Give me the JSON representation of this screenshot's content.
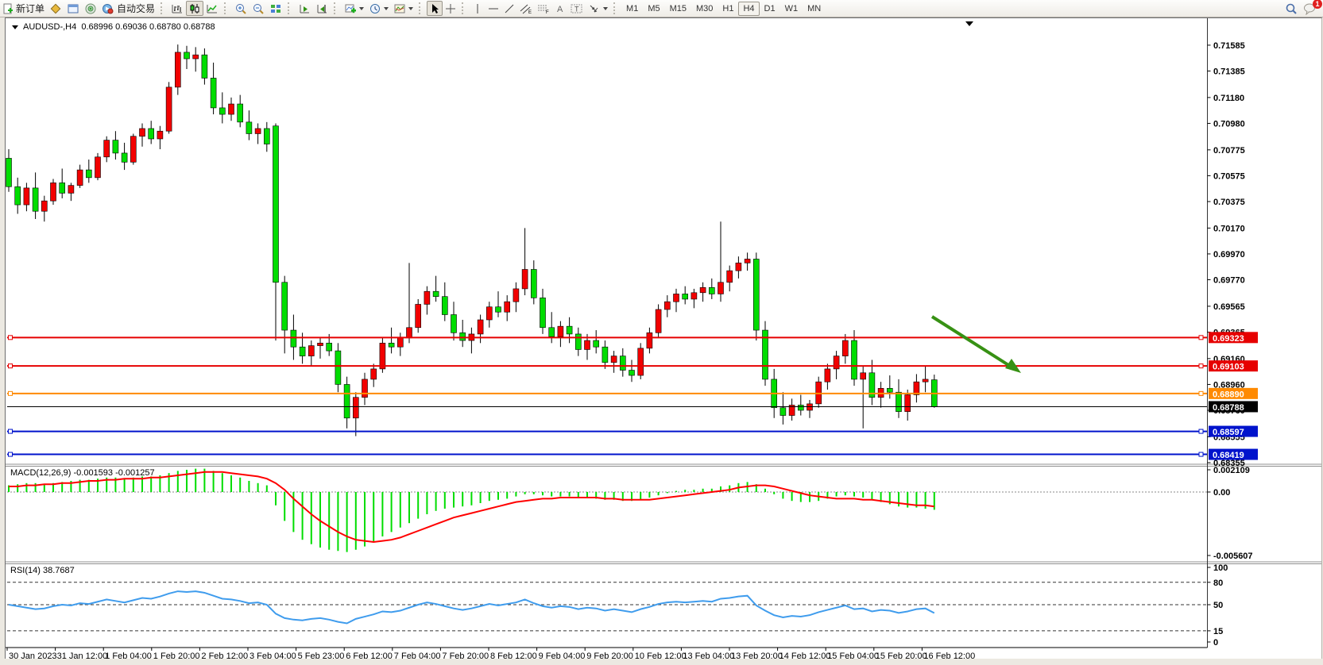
{
  "toolbar": {
    "new_order_label": "新订单",
    "autotrade_label": "自动交易",
    "timeframes": [
      "M1",
      "M5",
      "M15",
      "M30",
      "H1",
      "H4",
      "D1",
      "W1",
      "MN"
    ],
    "active_timeframe": "H4",
    "notification_badge": "1"
  },
  "chart": {
    "symbol_title": "AUDUSD-,H4",
    "ohlc_text": "0.68996 0.69036 0.68780 0.68788"
  },
  "price_axis_ticks": [
    "0.71585",
    "0.71385",
    "0.71180",
    "0.70980",
    "0.70775",
    "0.70575",
    "0.70375",
    "0.70170",
    "0.69970",
    "0.69770",
    "0.69565",
    "0.69365",
    "0.69160",
    "0.68960",
    "0.68760",
    "0.68555",
    "0.68355"
  ],
  "time_axis_labels": [
    "30 Jan 2023",
    "31 Jan 12:00",
    "1 Feb 04:00",
    "1 Feb 20:00",
    "2 Feb 12:00",
    "3 Feb 04:00",
    "5 Feb 23:00",
    "6 Feb 12:00",
    "7 Feb 04:00",
    "7 Feb 20:00",
    "8 Feb 12:00",
    "9 Feb 04:00",
    "9 Feb 20:00",
    "10 Feb 12:00",
    "13 Feb 04:00",
    "13 Feb 20:00",
    "14 Feb 12:00",
    "15 Feb 04:00",
    "15 Feb 20:00",
    "16 Feb 12:00"
  ],
  "levels": [
    {
      "name": "resistance-line-1",
      "price": 0.69323,
      "label": "0.69323",
      "color": "#e60000",
      "handles": true
    },
    {
      "name": "resistance-line-2",
      "price": 0.69103,
      "label": "0.69103",
      "color": "#e60000",
      "handles": true
    },
    {
      "name": "support-line-orange",
      "price": 0.6889,
      "label": "0.68890",
      "color": "#ff8a00",
      "handles": true
    },
    {
      "name": "current-price-line",
      "price": 0.68788,
      "label": "0.68788",
      "color": "#000000",
      "handles": false
    },
    {
      "name": "support-line-blue-1",
      "price": 0.68597,
      "label": "0.68597",
      "color": "#0013cc",
      "handles": true
    },
    {
      "name": "support-line-blue-2",
      "price": 0.68419,
      "label": "0.68419",
      "color": "#0013cc",
      "handles": true
    }
  ],
  "macd_panel": {
    "label": "MACD(12,26,9)",
    "values_text": "-0.001593 -0.001257",
    "axis_max": "0.002109",
    "axis_zero": "0.00",
    "axis_min": "-0.005607"
  },
  "rsi_panel": {
    "label": "RSI(14)",
    "value_text": "38.7687",
    "axis_ticks": [
      "100",
      "80",
      "50",
      "15",
      "0"
    ]
  },
  "annotation": {
    "type": "down-arrow",
    "color": "#379114"
  },
  "chart_data": [
    {
      "type": "candlestick",
      "title": "AUDUSD-,H4",
      "bull_color": "#f20000",
      "bear_color": "#00dd00",
      "ylim": [
        0.68343,
        0.71781
      ],
      "candles": [
        [
          0.7071,
          0.7078,
          0.7045,
          0.7049
        ],
        [
          0.7049,
          0.7056,
          0.7028,
          0.7035
        ],
        [
          0.7035,
          0.7052,
          0.703,
          0.7048
        ],
        [
          0.7048,
          0.706,
          0.7024,
          0.703
        ],
        [
          0.703,
          0.7042,
          0.7022,
          0.7038
        ],
        [
          0.7038,
          0.7055,
          0.7035,
          0.7052
        ],
        [
          0.7052,
          0.7063,
          0.704,
          0.7044
        ],
        [
          0.7044,
          0.7052,
          0.7038,
          0.705
        ],
        [
          0.705,
          0.7066,
          0.7048,
          0.7062
        ],
        [
          0.7062,
          0.707,
          0.7052,
          0.7056
        ],
        [
          0.7056,
          0.7075,
          0.7054,
          0.7072
        ],
        [
          0.7072,
          0.7088,
          0.7068,
          0.7085
        ],
        [
          0.7085,
          0.7092,
          0.707,
          0.7075
        ],
        [
          0.7075,
          0.7083,
          0.7062,
          0.7068
        ],
        [
          0.7068,
          0.709,
          0.7066,
          0.7088
        ],
        [
          0.7088,
          0.7098,
          0.708,
          0.7094
        ],
        [
          0.7094,
          0.71,
          0.7082,
          0.7086
        ],
        [
          0.7086,
          0.7096,
          0.7078,
          0.7092
        ],
        [
          0.7092,
          0.713,
          0.709,
          0.7126
        ],
        [
          0.7126,
          0.7159,
          0.712,
          0.7153
        ],
        [
          0.7153,
          0.7158,
          0.714,
          0.7148
        ],
        [
          0.7148,
          0.7157,
          0.7138,
          0.7151
        ],
        [
          0.7151,
          0.7156,
          0.7128,
          0.7133
        ],
        [
          0.7133,
          0.7145,
          0.7105,
          0.711
        ],
        [
          0.711,
          0.7122,
          0.7098,
          0.7105
        ],
        [
          0.7105,
          0.7118,
          0.71,
          0.7113
        ],
        [
          0.7113,
          0.712,
          0.7095,
          0.7099
        ],
        [
          0.7099,
          0.7108,
          0.7085,
          0.709
        ],
        [
          0.709,
          0.7098,
          0.7082,
          0.7094
        ],
        [
          0.7094,
          0.7099,
          0.7076,
          0.7082
        ],
        [
          0.7096,
          0.7098,
          0.693,
          0.6975
        ],
        [
          0.6975,
          0.698,
          0.692,
          0.6938
        ],
        [
          0.6938,
          0.695,
          0.6915,
          0.6925
        ],
        [
          0.6925,
          0.6936,
          0.6912,
          0.6918
        ],
        [
          0.6918,
          0.693,
          0.691,
          0.6926
        ],
        [
          0.6926,
          0.6932,
          0.6916,
          0.6928
        ],
        [
          0.6928,
          0.6935,
          0.6918,
          0.6922
        ],
        [
          0.6922,
          0.6928,
          0.689,
          0.6896
        ],
        [
          0.6896,
          0.6902,
          0.6862,
          0.687
        ],
        [
          0.687,
          0.689,
          0.6856,
          0.6886
        ],
        [
          0.6886,
          0.6905,
          0.688,
          0.69
        ],
        [
          0.69,
          0.6912,
          0.6894,
          0.6908
        ],
        [
          0.6908,
          0.6932,
          0.6905,
          0.6928
        ],
        [
          0.6928,
          0.694,
          0.692,
          0.6925
        ],
        [
          0.6925,
          0.6936,
          0.6918,
          0.6932
        ],
        [
          0.6932,
          0.699,
          0.6928,
          0.694
        ],
        [
          0.694,
          0.6962,
          0.6936,
          0.6958
        ],
        [
          0.6958,
          0.6972,
          0.695,
          0.6968
        ],
        [
          0.6968,
          0.698,
          0.696,
          0.6964
        ],
        [
          0.6964,
          0.6975,
          0.6945,
          0.695
        ],
        [
          0.695,
          0.696,
          0.693,
          0.6936
        ],
        [
          0.6936,
          0.6946,
          0.6925,
          0.693
        ],
        [
          0.693,
          0.694,
          0.692,
          0.6935
        ],
        [
          0.6935,
          0.695,
          0.6928,
          0.6946
        ],
        [
          0.6946,
          0.696,
          0.694,
          0.6956
        ],
        [
          0.6956,
          0.6968,
          0.6948,
          0.6952
        ],
        [
          0.6952,
          0.6965,
          0.6945,
          0.696
        ],
        [
          0.696,
          0.6975,
          0.6952,
          0.697
        ],
        [
          0.697,
          0.7017,
          0.6965,
          0.6985
        ],
        [
          0.6985,
          0.6992,
          0.6958,
          0.6963
        ],
        [
          0.6963,
          0.697,
          0.6935,
          0.694
        ],
        [
          0.694,
          0.6952,
          0.6928,
          0.6933
        ],
        [
          0.6933,
          0.6945,
          0.6925,
          0.6941
        ],
        [
          0.6941,
          0.6948,
          0.6928,
          0.6935
        ],
        [
          0.6935,
          0.694,
          0.6918,
          0.6923
        ],
        [
          0.6923,
          0.6935,
          0.6915,
          0.693
        ],
        [
          0.693,
          0.6938,
          0.692,
          0.6925
        ],
        [
          0.6925,
          0.693,
          0.6908,
          0.6913
        ],
        [
          0.6913,
          0.6922,
          0.6905,
          0.6918
        ],
        [
          0.6918,
          0.6924,
          0.6902,
          0.6907
        ],
        [
          0.6907,
          0.6915,
          0.6898,
          0.6903
        ],
        [
          0.6903,
          0.6928,
          0.69,
          0.6924
        ],
        [
          0.6924,
          0.694,
          0.692,
          0.6936
        ],
        [
          0.6936,
          0.6958,
          0.6932,
          0.6954
        ],
        [
          0.6954,
          0.6965,
          0.6948,
          0.696
        ],
        [
          0.696,
          0.697,
          0.6952,
          0.6966
        ],
        [
          0.6966,
          0.6972,
          0.6958,
          0.6962
        ],
        [
          0.6962,
          0.697,
          0.6955,
          0.6967
        ],
        [
          0.6967,
          0.6975,
          0.696,
          0.6971
        ],
        [
          0.6971,
          0.6978,
          0.6962,
          0.6966
        ],
        [
          0.6966,
          0.7022,
          0.696,
          0.6975
        ],
        [
          0.6975,
          0.6988,
          0.6968,
          0.6984
        ],
        [
          0.6984,
          0.6995,
          0.6978,
          0.699
        ],
        [
          0.699,
          0.6998,
          0.6984,
          0.6993
        ],
        [
          0.6993,
          0.6998,
          0.693,
          0.6938
        ],
        [
          0.6938,
          0.6945,
          0.6895,
          0.69
        ],
        [
          0.69,
          0.6908,
          0.687,
          0.6878
        ],
        [
          0.6878,
          0.689,
          0.6865,
          0.6872
        ],
        [
          0.6872,
          0.6885,
          0.6868,
          0.688
        ],
        [
          0.688,
          0.6888,
          0.6872,
          0.6876
        ],
        [
          0.6876,
          0.6884,
          0.687,
          0.6881
        ],
        [
          0.6881,
          0.6902,
          0.6878,
          0.6898
        ],
        [
          0.6898,
          0.6912,
          0.6892,
          0.6908
        ],
        [
          0.6908,
          0.6922,
          0.69,
          0.6918
        ],
        [
          0.6918,
          0.6935,
          0.6912,
          0.693
        ],
        [
          0.693,
          0.6938,
          0.6895,
          0.69
        ],
        [
          0.69,
          0.691,
          0.6862,
          0.6905
        ],
        [
          0.6905,
          0.6915,
          0.688,
          0.6886
        ],
        [
          0.6886,
          0.6898,
          0.6878,
          0.6893
        ],
        [
          0.6893,
          0.6903,
          0.6885,
          0.689
        ],
        [
          0.689,
          0.69,
          0.687,
          0.6875
        ],
        [
          0.6875,
          0.6892,
          0.6868,
          0.6888
        ],
        [
          0.6888,
          0.6904,
          0.6882,
          0.6898
        ],
        [
          0.6898,
          0.691,
          0.689,
          0.69
        ],
        [
          0.68996,
          0.69036,
          0.6878,
          0.68788
        ]
      ]
    },
    {
      "type": "bar",
      "title": "MACD(12,26,9)",
      "ylim": [
        -0.005607,
        0.002109
      ],
      "histogram_color": "#00dd00",
      "signal_color": "#ff0000",
      "histogram": [
        0.0006,
        0.0007,
        0.0008,
        0.0008,
        0.0007,
        0.0008,
        0.0009,
        0.001,
        0.0011,
        0.0011,
        0.0012,
        0.0013,
        0.0013,
        0.0012,
        0.0013,
        0.0014,
        0.0014,
        0.0015,
        0.0017,
        0.0019,
        0.002,
        0.0021,
        0.0021,
        0.0019,
        0.0017,
        0.0015,
        0.0013,
        0.001,
        0.0008,
        0.0006,
        -0.0012,
        -0.0026,
        -0.0036,
        -0.0043,
        -0.0047,
        -0.005,
        -0.0052,
        -0.0053,
        -0.0054,
        -0.0052,
        -0.0049,
        -0.0045,
        -0.004,
        -0.0036,
        -0.0032,
        -0.0028,
        -0.0024,
        -0.002,
        -0.0017,
        -0.0015,
        -0.0014,
        -0.0013,
        -0.0012,
        -0.001,
        -0.0008,
        -0.0007,
        -0.0006,
        -0.0004,
        -0.0002,
        -0.0002,
        -0.0003,
        -0.0004,
        -0.0004,
        -0.0004,
        -0.0005,
        -0.0005,
        -0.0006,
        -0.0007,
        -0.0007,
        -0.0008,
        -0.0008,
        -0.0007,
        -0.0005,
        -0.0003,
        -0.0001,
        0.0001,
        0.0002,
        0.0002,
        0.0003,
        0.0003,
        0.0005,
        0.0006,
        0.0008,
        0.0009,
        0.0007,
        0.0003,
        -0.0002,
        -0.0006,
        -0.0008,
        -0.0009,
        -0.0009,
        -0.0008,
        -0.0006,
        -0.0004,
        -0.0003,
        -0.0004,
        -0.0005,
        -0.0007,
        -0.0009,
        -0.0011,
        -0.0013,
        -0.0014,
        -0.0014,
        -0.0015,
        -0.0016
      ],
      "signal": [
        0.0005,
        0.0005,
        0.0006,
        0.0006,
        0.0007,
        0.0007,
        0.0008,
        0.0008,
        0.0009,
        0.001,
        0.001,
        0.0011,
        0.0011,
        0.0012,
        0.0012,
        0.0012,
        0.0013,
        0.0013,
        0.0014,
        0.0015,
        0.0016,
        0.0017,
        0.0018,
        0.0018,
        0.0018,
        0.0017,
        0.0016,
        0.0015,
        0.0014,
        0.0012,
        0.0008,
        0.0002,
        -0.0006,
        -0.0013,
        -0.002,
        -0.0026,
        -0.0031,
        -0.0036,
        -0.004,
        -0.0043,
        -0.0044,
        -0.0045,
        -0.0044,
        -0.0043,
        -0.0041,
        -0.0038,
        -0.0035,
        -0.0032,
        -0.0029,
        -0.0026,
        -0.0023,
        -0.0021,
        -0.0019,
        -0.0017,
        -0.0015,
        -0.0013,
        -0.0011,
        -0.0009,
        -0.0008,
        -0.0007,
        -0.0006,
        -0.0006,
        -0.0005,
        -0.0005,
        -0.0005,
        -0.0005,
        -0.0005,
        -0.0006,
        -0.0006,
        -0.0007,
        -0.0007,
        -0.0007,
        -0.0007,
        -0.0006,
        -0.0005,
        -0.0004,
        -0.0003,
        -0.0002,
        -0.0001,
        0.0,
        0.0001,
        0.0002,
        0.0004,
        0.0005,
        0.0006,
        0.0006,
        0.0005,
        0.0003,
        0.0001,
        -0.0001,
        -0.0003,
        -0.0004,
        -0.0005,
        -0.0006,
        -0.0006,
        -0.0006,
        -0.0007,
        -0.0007,
        -0.0008,
        -0.0009,
        -0.001,
        -0.0011,
        -0.0012,
        -0.0012,
        -0.0013
      ]
    },
    {
      "type": "line",
      "title": "RSI(14)",
      "ylim": [
        0,
        100
      ],
      "levels": [
        80,
        50,
        15
      ],
      "color": "#3f9ced",
      "values": [
        50,
        48,
        46,
        44,
        45,
        48,
        50,
        49,
        52,
        51,
        54,
        57,
        55,
        53,
        56,
        59,
        58,
        61,
        65,
        68,
        67,
        68,
        66,
        62,
        58,
        57,
        55,
        52,
        53,
        50,
        38,
        32,
        30,
        29,
        31,
        32,
        30,
        27,
        25,
        31,
        34,
        37,
        41,
        40,
        42,
        46,
        50,
        53,
        51,
        48,
        45,
        43,
        45,
        48,
        51,
        49,
        51,
        53,
        57,
        52,
        48,
        46,
        48,
        47,
        44,
        46,
        45,
        42,
        44,
        42,
        40,
        44,
        47,
        51,
        53,
        54,
        53,
        54,
        55,
        54,
        58,
        59,
        61,
        62,
        49,
        42,
        36,
        33,
        35,
        34,
        36,
        40,
        43,
        46,
        49,
        44,
        45,
        41,
        43,
        42,
        39,
        41,
        44,
        45,
        38.8
      ]
    }
  ]
}
